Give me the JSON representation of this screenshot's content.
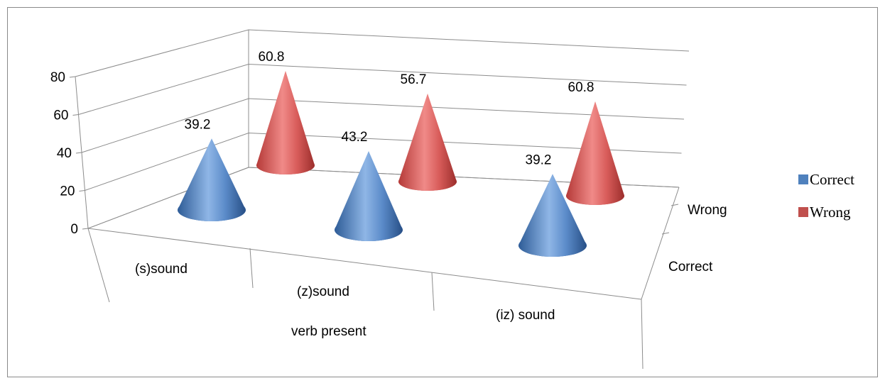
{
  "chart_data": {
    "type": "bar",
    "style": "3d-cone",
    "categories": [
      "(s)sound",
      "(z)sound",
      "(iz) sound"
    ],
    "series": [
      {
        "name": "Correct",
        "values": [
          39.2,
          43.2,
          39.2
        ],
        "color": "#4f81bd"
      },
      {
        "name": "Wrong",
        "values": [
          60.8,
          56.7,
          60.8
        ],
        "color": "#c0504d"
      }
    ],
    "xlabel": "verb present",
    "depth_labels": [
      "Correct",
      "Wrong"
    ],
    "ylim": [
      0,
      80
    ],
    "yticks": [
      0,
      20,
      40,
      60,
      80
    ],
    "grid": true,
    "legend": "right"
  }
}
